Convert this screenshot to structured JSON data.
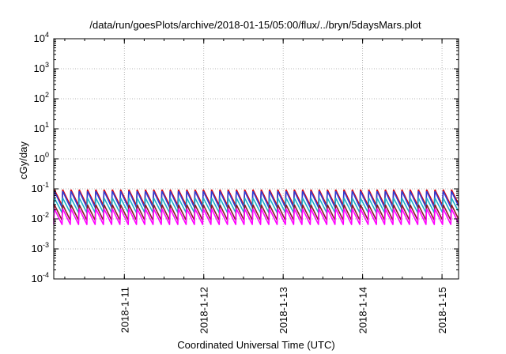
{
  "chart_data": {
    "type": "line",
    "title": "/data/run/goesPlots/archive/2018-01-15/05:00/flux/../bryn/5daysMars.plot",
    "xlabel": "Coordinated Universal Time (UTC)",
    "ylabel": "cGy/day",
    "y_scale": "log",
    "ylim": [
      0.0001,
      10000
    ],
    "xlim": [
      "2018-01-10T02:40",
      "2018-01-15T05:00"
    ],
    "grid": true,
    "x_tick_labels": [
      "2018-1-11",
      "2018-1-12",
      "2018-1-13",
      "2018-1-14",
      "2018-1-15"
    ],
    "y_ticks": [
      {
        "base": "10",
        "exp": "-4",
        "value": 0.0001
      },
      {
        "base": "10",
        "exp": "-3",
        "value": 0.001
      },
      {
        "base": "10",
        "exp": "-2",
        "value": 0.01
      },
      {
        "base": "10",
        "exp": "-1",
        "value": 0.1
      },
      {
        "base": "10",
        "exp": "0",
        "value": 1
      },
      {
        "base": "10",
        "exp": "1",
        "value": 10
      },
      {
        "base": "10",
        "exp": "2",
        "value": 100
      },
      {
        "base": "10",
        "exp": "3",
        "value": 1000
      },
      {
        "base": "10",
        "exp": "4",
        "value": 10000
      }
    ],
    "sawtooth_period_hours": 2.5,
    "series": [
      {
        "color": "#e60000",
        "peak": 0.095,
        "trough": 0.028
      },
      {
        "color": "#2d3dd6",
        "peak": 0.085,
        "trough": 0.024
      },
      {
        "color": "#20b0c8",
        "peak": 0.05,
        "trough": 0.016
      },
      {
        "color": "#8a1a2a",
        "peak": 0.03,
        "trough": 0.009
      },
      {
        "color": "#ff00ff",
        "peak": 0.022,
        "trough": 0.0065
      }
    ]
  }
}
